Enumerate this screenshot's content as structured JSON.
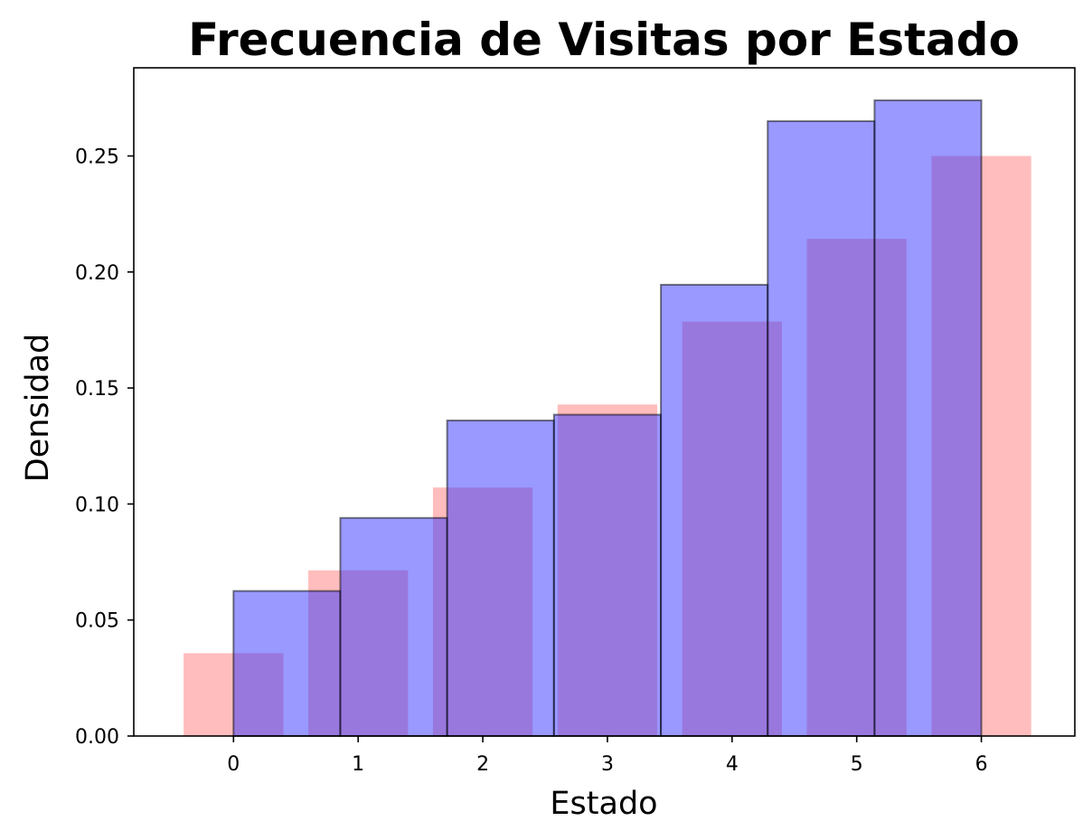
{
  "chart_data": {
    "type": "bar",
    "title": "Frecuencia de Visitas por Estado",
    "xlabel": "Estado",
    "ylabel": "Densidad",
    "xlim": [
      -0.8,
      6.75
    ],
    "ylim": [
      0,
      0.288
    ],
    "x_ticks": [
      0,
      1,
      2,
      3,
      4,
      5,
      6
    ],
    "y_ticks": [
      0.0,
      0.05,
      0.1,
      0.15,
      0.2,
      0.25
    ],
    "y_tick_labels": [
      "0.00",
      "0.05",
      "0.10",
      "0.15",
      "0.20",
      "0.25"
    ],
    "grid": false,
    "legend": false,
    "series": [
      {
        "kind": "bar",
        "color": "#ff9999",
        "opacity": 0.65,
        "bar_width": 0.8,
        "x": [
          0,
          1,
          2,
          3,
          4,
          5,
          6
        ],
        "values": [
          0.0357,
          0.0714,
          0.1071,
          0.1429,
          0.1786,
          0.2143,
          0.25
        ]
      },
      {
        "kind": "histogram",
        "color": "#3333ff",
        "opacity": 0.5,
        "edgecolor": "#000000",
        "bin_edges": [
          0,
          0.857,
          1.714,
          2.571,
          3.429,
          4.286,
          5.143,
          6.0
        ],
        "values": [
          0.0625,
          0.094,
          0.136,
          0.1385,
          0.1945,
          0.265,
          0.274
        ]
      }
    ]
  }
}
